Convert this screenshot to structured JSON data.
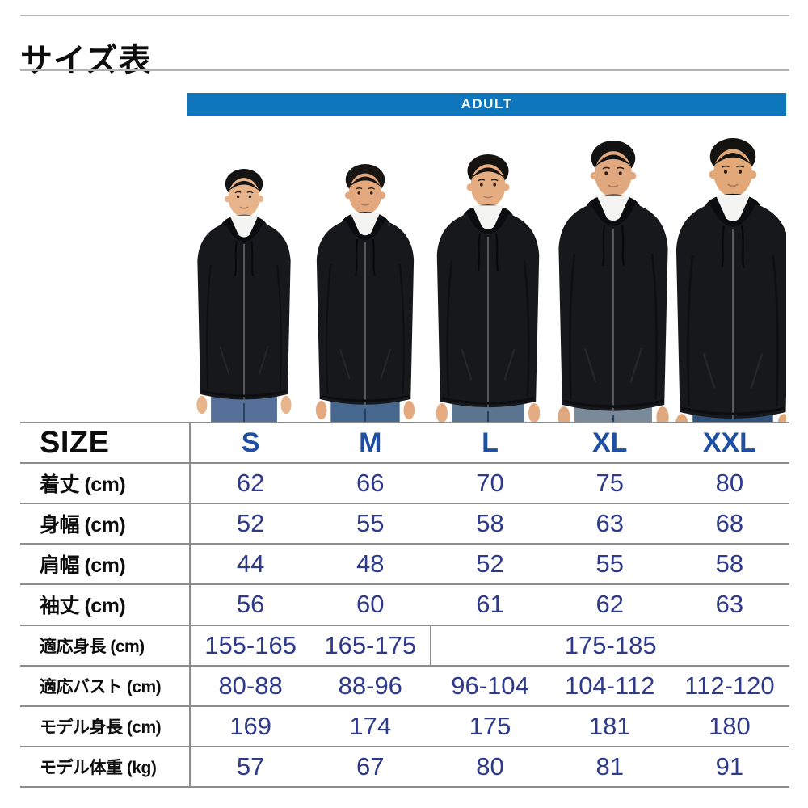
{
  "page": {
    "title": "サイズ表"
  },
  "banner": {
    "label": "ADULT"
  },
  "photo": {
    "models_count": 5,
    "description": "five-men-black-zip-hoodies"
  },
  "table": {
    "header": {
      "label": "SIZE",
      "columns": [
        "S",
        "M",
        "L",
        "XL",
        "XXL"
      ]
    },
    "rows": [
      {
        "label": "着丈 (cm)",
        "values": [
          "62",
          "66",
          "70",
          "75",
          "80"
        ]
      },
      {
        "label": "身幅 (cm)",
        "values": [
          "52",
          "55",
          "58",
          "63",
          "68"
        ]
      },
      {
        "label": "肩幅 (cm)",
        "values": [
          "44",
          "48",
          "52",
          "55",
          "58"
        ]
      },
      {
        "label": "袖丈 (cm)",
        "values": [
          "56",
          "60",
          "61",
          "62",
          "63"
        ]
      },
      {
        "label": "適応身長 (cm)",
        "values": [
          "155-165",
          "165-175",
          {
            "text": "175-185",
            "span": 3
          }
        ]
      },
      {
        "label": "適応バスト (cm)",
        "values": [
          "80-88",
          "88-96",
          "96-104",
          "104-112",
          "112-120"
        ]
      },
      {
        "label": "モデル身長 (cm)",
        "values": [
          "169",
          "174",
          "175",
          "181",
          "180"
        ]
      },
      {
        "label": "モデル体重 (kg)",
        "values": [
          "57",
          "67",
          "80",
          "81",
          "91"
        ]
      }
    ]
  },
  "colors": {
    "banner_blue": "#0e76bd",
    "header_blue": "#1e4fa0",
    "value_navy": "#2e3a8a",
    "line_gray": "#8d8d8d"
  }
}
